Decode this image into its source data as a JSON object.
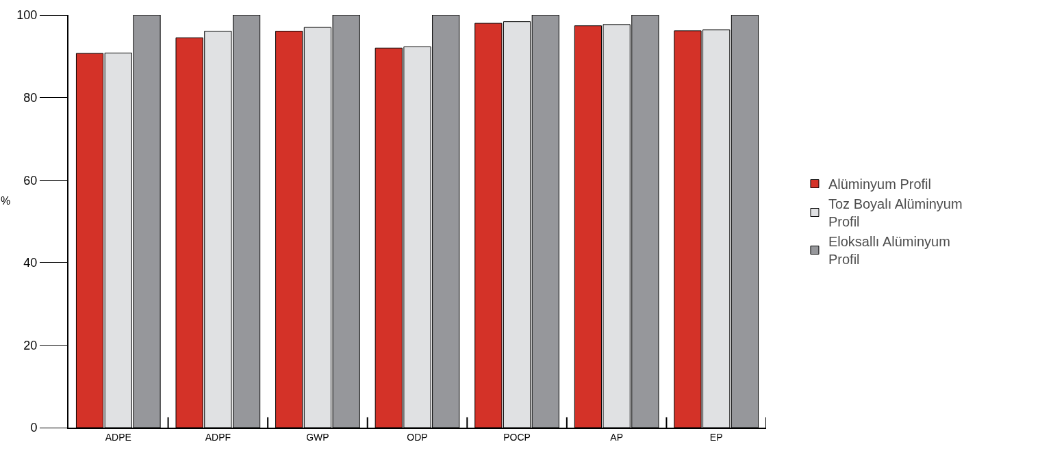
{
  "chart_data": {
    "type": "bar",
    "ylabel": "%",
    "categories": [
      "ADPE",
      "ADPF",
      "GWP",
      "ODP",
      "POCP",
      "AP",
      "EP"
    ],
    "series": [
      {
        "name": "Alüminyum Profil",
        "color": "#d43228",
        "values": [
          90.7,
          94.5,
          96.1,
          92.0,
          98.0,
          97.4,
          96.2
        ]
      },
      {
        "name": "Toz Boyalı Alüminyum Profil",
        "color": "#e0e1e3",
        "values": [
          90.8,
          96.1,
          97.0,
          92.3,
          98.4,
          97.7,
          96.4
        ]
      },
      {
        "name": "Eloksallı Alüminyum Profil",
        "color": "#96979b",
        "values": [
          100,
          100,
          100,
          100,
          100,
          100,
          100
        ]
      }
    ],
    "ylim": [
      0,
      100
    ],
    "yticks": [
      0,
      20,
      40,
      60,
      80,
      100
    ],
    "legend": "right"
  }
}
